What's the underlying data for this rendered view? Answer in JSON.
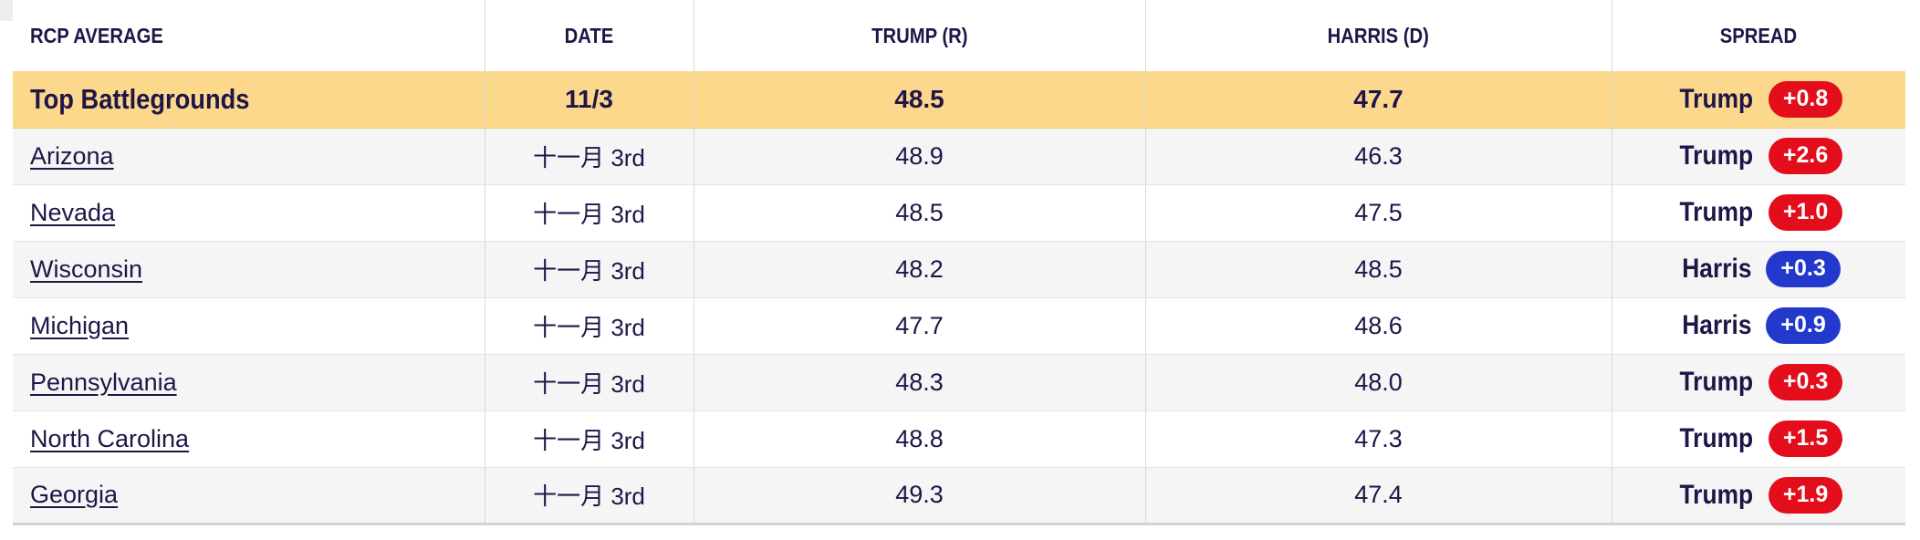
{
  "colors": {
    "text_navy": "#201547",
    "highlight_yellow": "#fbd88c",
    "row_alt_grey": "#f5f5f6",
    "badge_red": "#e30d1b",
    "badge_blue": "#2339cb",
    "separator_grey": "#d8d8da",
    "bottom_border_grey": "#d3d3d5"
  },
  "table": {
    "headers": [
      "RCP AVERAGE",
      "DATE",
      "TRUMP (R)",
      "HARRIS (D)",
      "SPREAD"
    ],
    "highlight": {
      "name": "Top Battlegrounds",
      "date": "11/3",
      "trump": "48.5",
      "harris": "47.7",
      "spread": {
        "leader": "Trump",
        "value": "+0.8",
        "color": "#e30d1b"
      }
    },
    "rows": [
      {
        "name": "Arizona",
        "date": "十一月 3rd",
        "trump": "48.9",
        "harris": "46.3",
        "spread": {
          "leader": "Trump",
          "value": "+2.6",
          "color": "#e30d1b"
        }
      },
      {
        "name": "Nevada",
        "date": "十一月 3rd",
        "trump": "48.5",
        "harris": "47.5",
        "spread": {
          "leader": "Trump",
          "value": "+1.0",
          "color": "#e30d1b"
        }
      },
      {
        "name": "Wisconsin",
        "date": "十一月 3rd",
        "trump": "48.2",
        "harris": "48.5",
        "spread": {
          "leader": "Harris",
          "value": "+0.3",
          "color": "#2339cb"
        }
      },
      {
        "name": "Michigan",
        "date": "十一月 3rd",
        "trump": "47.7",
        "harris": "48.6",
        "spread": {
          "leader": "Harris",
          "value": "+0.9",
          "color": "#2339cb"
        }
      },
      {
        "name": "Pennsylvania",
        "date": "十一月 3rd",
        "trump": "48.3",
        "harris": "48.0",
        "spread": {
          "leader": "Trump",
          "value": "+0.3",
          "color": "#e30d1b"
        }
      },
      {
        "name": "North Carolina",
        "date": "十一月 3rd",
        "trump": "48.8",
        "harris": "47.3",
        "spread": {
          "leader": "Trump",
          "value": "+1.5",
          "color": "#e30d1b"
        }
      },
      {
        "name": "Georgia",
        "date": "十一月 3rd",
        "trump": "49.3",
        "harris": "47.4",
        "spread": {
          "leader": "Trump",
          "value": "+1.9",
          "color": "#e30d1b"
        }
      }
    ]
  },
  "chart_data": {
    "type": "table",
    "title": "RCP Average — Top Battlegrounds polling",
    "columns": [
      "RCP AVERAGE",
      "DATE",
      "TRUMP (R)",
      "HARRIS (D)",
      "SPREAD"
    ],
    "rows": [
      [
        "Top Battlegrounds",
        "11/3",
        48.5,
        47.7,
        "Trump +0.8"
      ],
      [
        "Arizona",
        "十一月 3rd",
        48.9,
        46.3,
        "Trump +2.6"
      ],
      [
        "Nevada",
        "十一月 3rd",
        48.5,
        47.5,
        "Trump +1.0"
      ],
      [
        "Wisconsin",
        "十一月 3rd",
        48.2,
        48.5,
        "Harris +0.3"
      ],
      [
        "Michigan",
        "十一月 3rd",
        47.7,
        48.6,
        "Harris +0.9"
      ],
      [
        "Pennsylvania",
        "十一月 3rd",
        48.3,
        48.0,
        "Trump +0.3"
      ],
      [
        "North Carolina",
        "十一月 3rd",
        48.8,
        47.3,
        "Trump +1.5"
      ],
      [
        "Georgia",
        "十一月 3rd",
        49.3,
        47.4,
        "Trump +1.9"
      ]
    ],
    "series": [
      {
        "name": "Trump (R)",
        "values": [
          48.5,
          48.9,
          48.5,
          48.2,
          47.7,
          48.3,
          48.8,
          49.3
        ]
      },
      {
        "name": "Harris (D)",
        "values": [
          47.7,
          46.3,
          47.5,
          48.5,
          48.6,
          48.0,
          47.3,
          47.4
        ]
      }
    ],
    "categories": [
      "Top Battlegrounds",
      "Arizona",
      "Nevada",
      "Wisconsin",
      "Michigan",
      "Pennsylvania",
      "North Carolina",
      "Georgia"
    ],
    "legend_position": "none",
    "grid": false
  }
}
